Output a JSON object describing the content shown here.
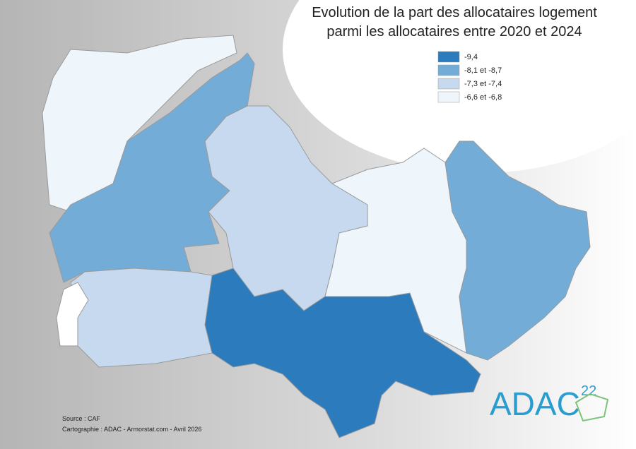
{
  "header": {
    "title_lines": [
      "Evolution de la part des allocataires logement",
      "parmi les allocataires entre 2020 et 2024"
    ]
  },
  "legend": {
    "items": [
      {
        "label": "-9,4",
        "color": "#2b7bbd"
      },
      {
        "label": "-8,1 et -8,7",
        "color": "#72acd7"
      },
      {
        "label": "-7,3 et -7,4",
        "color": "#c6d9ee"
      },
      {
        "label": "-6,6 et -6,8",
        "color": "#eef6fb"
      }
    ]
  },
  "footer": {
    "source": "Source : CAF",
    "credit": "Cartographie : ADAC - Armorstat.com - Avril 2026"
  },
  "logo": {
    "text": "ADAC",
    "number": "22"
  }
}
